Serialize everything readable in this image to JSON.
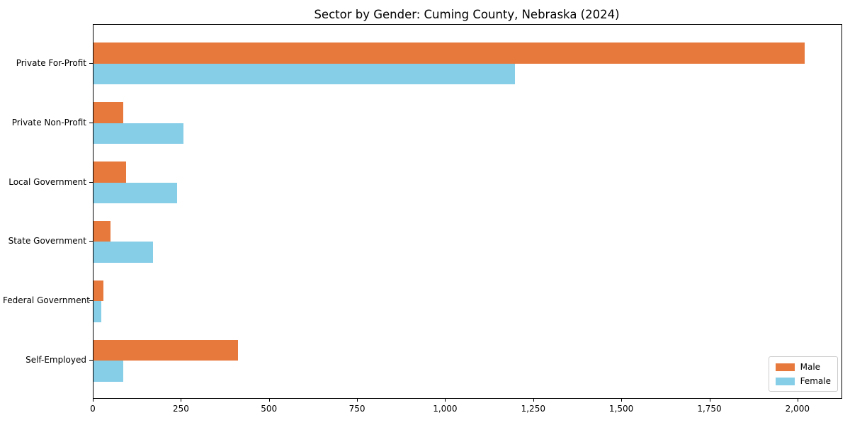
{
  "chart_data": {
    "type": "bar",
    "orientation": "horizontal",
    "title": "Sector by Gender: Cuming County, Nebraska (2024)",
    "categories": [
      "Private For-Profit",
      "Private Non-Profit",
      "Local Government",
      "State Government",
      "Federal Government",
      "Self-Employed"
    ],
    "series": [
      {
        "name": "Male",
        "color": "#E7793C",
        "values": [
          2018,
          85,
          93,
          48,
          29,
          411
        ]
      },
      {
        "name": "Female",
        "color": "#86CDE7",
        "values": [
          1196,
          255,
          238,
          169,
          22,
          85
        ]
      }
    ],
    "xlabel": "",
    "ylabel": "",
    "xlim": [
      0,
      2123
    ],
    "xticks": [
      0,
      250,
      500,
      750,
      1000,
      1250,
      1500,
      1750,
      2000
    ],
    "xtick_labels": [
      "0",
      "250",
      "500",
      "750",
      "1,000",
      "1,250",
      "1,500",
      "1,750",
      "2,000"
    ],
    "grid": false,
    "legend_position": "lower right",
    "plot_border_color": "#000000",
    "background_color": "#ffffff"
  }
}
